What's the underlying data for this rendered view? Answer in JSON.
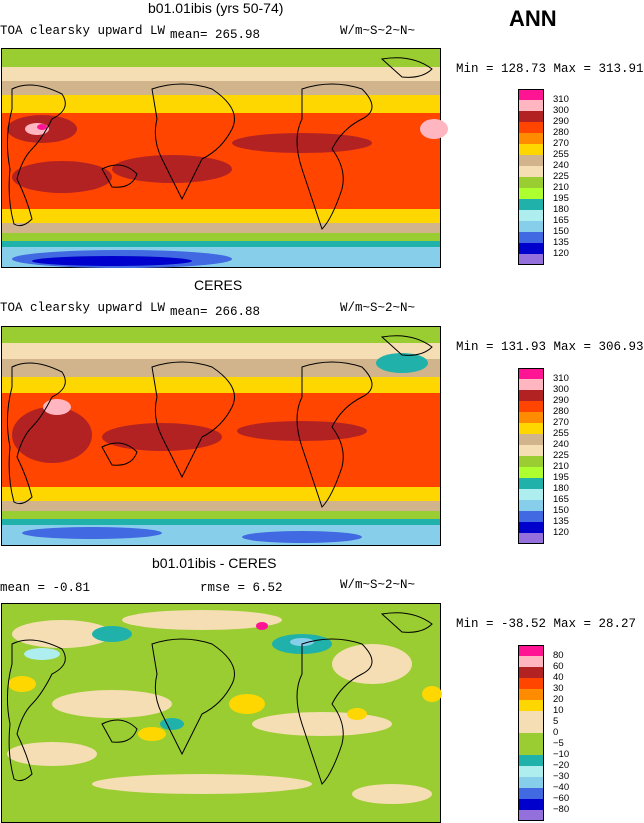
{
  "season": "ANN",
  "panels": [
    {
      "id": "model",
      "title": "b01.01ibis (yrs 50-74)",
      "left_label": "TOA clearsky upward LW",
      "stat_label": "mean= 265.98",
      "units": "W/m~S~2~N~",
      "minmax": "Min = 128.73 Max = 313.91"
    },
    {
      "id": "obs",
      "title": "CERES",
      "left_label": "TOA clearsky upward LW",
      "stat_label": "mean= 266.88",
      "units": "W/m~S~2~N~",
      "minmax": "Min = 131.93 Max = 306.93"
    },
    {
      "id": "diff",
      "title": "b01.01ibis - CERES",
      "mean_label": "mean =   -0.81",
      "rmse_label": "rmse =    6.52",
      "units": "W/m~S~2~N~",
      "minmax": "Min = -38.52 Max =  28.27"
    }
  ],
  "colorbar_main": {
    "colors": [
      "#ff1493",
      "#ffb6c1",
      "#b22222",
      "#ff4500",
      "#ff8c00",
      "#ffd700",
      "#d2b48c",
      "#f5deb3",
      "#9acd32",
      "#adff2f",
      "#20b2aa",
      "#afeeee",
      "#87ceeb",
      "#4169e1",
      "#0000cd",
      "#9370db"
    ],
    "labels": [
      "310",
      "300",
      "290",
      "280",
      "270",
      "255",
      "240",
      "225",
      "210",
      "195",
      "180",
      "165",
      "150",
      "135",
      "120"
    ]
  },
  "colorbar_diff": {
    "colors": [
      "#ff1493",
      "#ffb6c1",
      "#b22222",
      "#ff4500",
      "#ff8c00",
      "#ffd700",
      "#f5deb3",
      "#f5deb3",
      "#9acd32",
      "#9acd32",
      "#20b2aa",
      "#afeeee",
      "#87ceeb",
      "#4169e1",
      "#0000cd",
      "#9370db"
    ],
    "labels": [
      "80",
      "60",
      "40",
      "30",
      "20",
      "10",
      "5",
      "0",
      "−5",
      "−10",
      "−20",
      "−30",
      "−40",
      "−60",
      "−80"
    ]
  }
}
